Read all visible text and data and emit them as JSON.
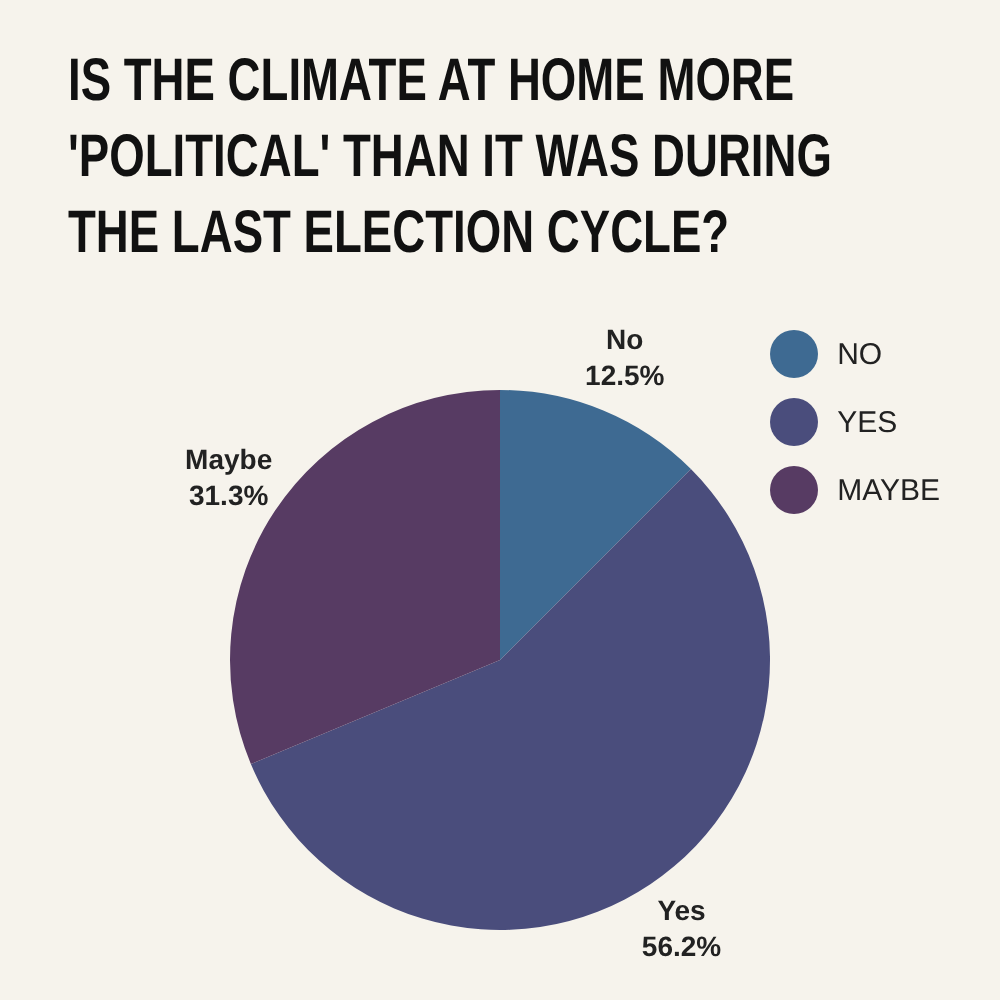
{
  "chart_data": {
    "type": "pie",
    "title": "IS THE CLIMATE AT HOME MORE 'POLITICAL' THAN IT WAS DURING THE LAST ELECTION CYCLE?",
    "categories": [
      "NO",
      "YES",
      "MAYBE"
    ],
    "values": [
      12.5,
      56.2,
      31.3
    ],
    "value_labels": [
      "12.5%",
      "56.2%",
      "31.3%"
    ],
    "annotations": [
      "No",
      "Yes",
      "Maybe"
    ],
    "colors": [
      "#3e6a92",
      "#4a4d7c",
      "#573b63"
    ],
    "legend": "top right"
  }
}
